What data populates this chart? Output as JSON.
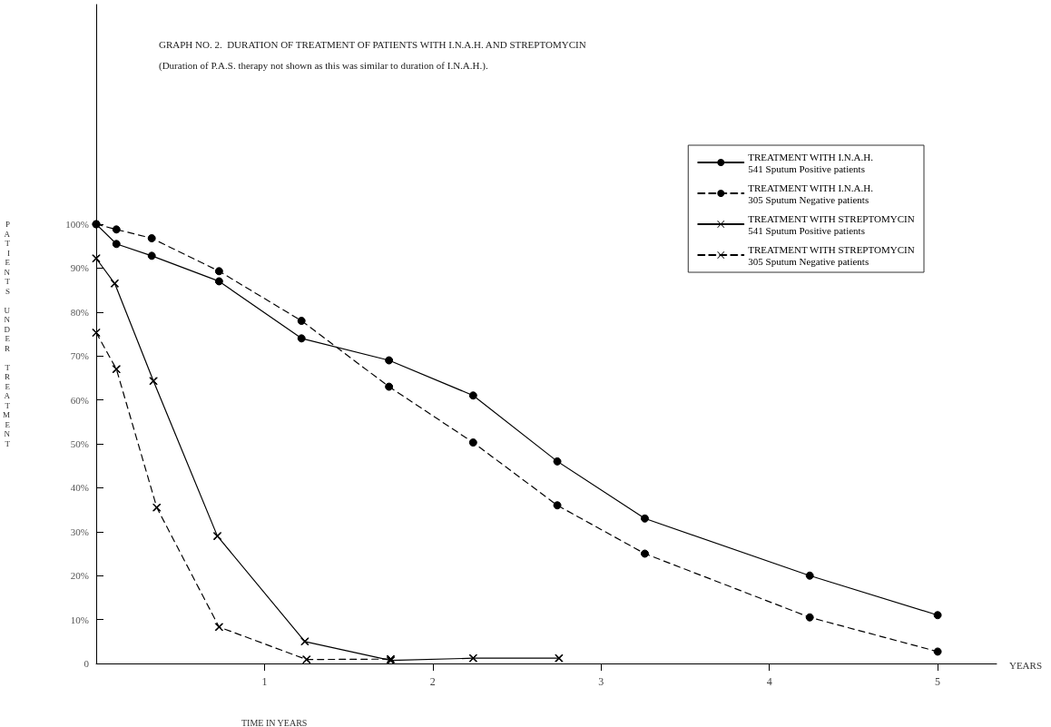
{
  "chart_data": {
    "type": "line",
    "title": "GRAPH NO. 2.  DURATION OF TREATMENT OF PATIENTS WITH I.N.A.H. AND STREPTOMYCIN",
    "subtitle": "(Duration of P.A.S. therapy not shown as this was similar to duration of I.N.A.H.).",
    "xlabel": "TIME IN YEARS",
    "ylabel": "PATIENTS UNDER TREATMENT",
    "annotations": [
      "YEARS"
    ],
    "series": [
      {
        "name": "TREATMENT WITH I.N.A.H.\n541 Sputum Positive patients",
        "color": "#000000",
        "marker": "circle",
        "line_style": "solid",
        "x": [
          0,
          0.12,
          0.33,
          0.73,
          1.22,
          1.74,
          2.24,
          2.74,
          3.26,
          4.24,
          5
        ],
        "values": [
          100,
          95.5,
          92.8,
          87,
          74,
          69,
          61,
          46,
          33,
          20,
          11
        ]
      },
      {
        "name": "TREATMENT WITH I.N.A.H.\n305 Sputum Negative patients",
        "color": "#000000",
        "marker": "circle",
        "line_style": "dashed",
        "x": [
          0,
          0.12,
          0.33,
          0.73,
          1.22,
          1.74,
          2.24,
          2.74,
          3.26,
          4.24,
          5
        ],
        "values": [
          100,
          98.8,
          96.8,
          89.3,
          78,
          63,
          50.3,
          36,
          25,
          10.5,
          2.7
        ]
      },
      {
        "name": "TREATMENT WITH STREPTOMYCIN\n541 Sputum Positive patients",
        "color": "#000000",
        "marker": "cross",
        "line_style": "solid",
        "x": [
          0,
          0.11,
          0.34,
          0.72,
          1.24,
          1.75,
          2.24,
          2.75
        ],
        "values": [
          92.2,
          86.5,
          64.3,
          29,
          5,
          0.7,
          1.2,
          1.2
        ]
      },
      {
        "name": "TREATMENT WITH STREPTOMYCIN\n305 Sputum Negative patients",
        "color": "#000000",
        "marker": "cross",
        "line_style": "dashed",
        "x": [
          0,
          0.12,
          0.36,
          0.73,
          1.25,
          1.75
        ],
        "values": [
          75.3,
          67,
          35.5,
          8.3,
          0.9,
          1
        ]
      }
    ],
    "xlim": [
      0,
      5.35
    ],
    "xticks": [
      1,
      2,
      3,
      4,
      5
    ],
    "ylim": [
      0,
      150
    ],
    "yticks": [
      0,
      {
        "value": 10,
        "label": "10%"
      },
      {
        "value": 20,
        "label": "20%"
      },
      {
        "value": 30,
        "label": "30%"
      },
      {
        "value": 40,
        "label": "40%"
      },
      {
        "value": 50,
        "label": "50%"
      },
      {
        "value": 60,
        "label": "60%"
      },
      {
        "value": 70,
        "label": "70%"
      },
      {
        "value": 80,
        "label": "80%"
      },
      {
        "value": 90,
        "label": "90%"
      },
      {
        "value": 100,
        "label": "100%"
      }
    ],
    "grid": false,
    "legend": "top right"
  }
}
